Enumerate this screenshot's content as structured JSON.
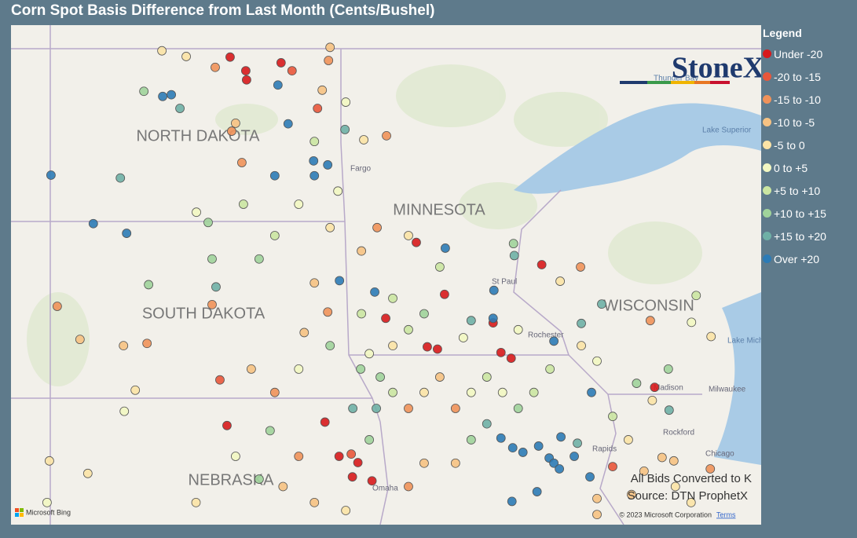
{
  "title": "Corn Spot Basis Difference from Last Month (Cents/Bushel)",
  "legend": {
    "title": "Legend",
    "items": [
      {
        "label": "Under -20",
        "color": "#d7191c"
      },
      {
        "label": "-20 to -15",
        "color": "#e9573b"
      },
      {
        "label": "-15 to -10",
        "color": "#f0925a"
      },
      {
        "label": "-10 to -5",
        "color": "#f6c283"
      },
      {
        "label": "-5 to 0",
        "color": "#fbe3a6"
      },
      {
        "label": "0 to +5",
        "color": "#f2f7c2"
      },
      {
        "label": "+5 to +10",
        "color": "#cbe6a2"
      },
      {
        "label": "+10 to +15",
        "color": "#a0d39b"
      },
      {
        "label": "+15 to +20",
        "color": "#6fb0a6"
      },
      {
        "label": "Over +20",
        "color": "#2c7bb6"
      }
    ]
  },
  "map": {
    "state_labels": [
      "NORTH DAKOTA",
      "MINNESOTA",
      "SOUTH DAKOTA",
      "WISCONSIN",
      "NEBRASKA"
    ],
    "place_labels": [
      "Fargo",
      "St Paul",
      "Rochester",
      "Madison",
      "Milwaukee",
      "Rockford",
      "Chicago",
      "Omaha",
      "Rapids",
      "Lake Superior",
      "Lake Michigan",
      "Thunder Bay"
    ],
    "notes": [
      "All Bids Converted to K",
      "Source: DTN ProphetX"
    ],
    "attribution": "© 2023 Microsoft Corporation",
    "terms": "Terms",
    "provider": "Microsoft Bing",
    "logo": "StoneX",
    "points": [
      [
        -99.8,
        48.83,
        0
      ],
      [
        -99.4,
        48.59,
        0
      ],
      [
        -99.38,
        48.43,
        0
      ],
      [
        -98.5,
        48.73,
        0
      ],
      [
        -100.18,
        48.65,
        2
      ],
      [
        -100.92,
        48.84,
        4
      ],
      [
        -101.54,
        48.94,
        4
      ],
      [
        -101.3,
        48.17,
        9
      ],
      [
        -101.52,
        48.14,
        9
      ],
      [
        -101.08,
        47.93,
        8
      ],
      [
        -98.32,
        47.66,
        9
      ],
      [
        -98.58,
        48.34,
        9
      ],
      [
        -98.22,
        48.59,
        1
      ],
      [
        -97.29,
        48.77,
        2
      ],
      [
        -97.45,
        48.25,
        3
      ],
      [
        -97.57,
        47.93,
        1
      ],
      [
        -96.87,
        47.56,
        8
      ],
      [
        -99.76,
        47.53,
        2
      ],
      [
        -99.66,
        47.67,
        3
      ],
      [
        -102.0,
        48.23,
        7
      ],
      [
        -104.37,
        46.76,
        9
      ],
      [
        -102.6,
        46.71,
        8
      ],
      [
        -98.66,
        46.75,
        9
      ],
      [
        -97.67,
        47.01,
        9
      ],
      [
        -97.31,
        46.94,
        9
      ],
      [
        -97.65,
        46.75,
        9
      ],
      [
        -103.29,
        45.91,
        9
      ],
      [
        -102.44,
        45.74,
        9
      ],
      [
        -99.5,
        46.98,
        2
      ],
      [
        -96.39,
        47.38,
        4
      ],
      [
        -95.81,
        47.45,
        2
      ],
      [
        -97.05,
        46.48,
        5
      ],
      [
        -100.36,
        45.93,
        7
      ],
      [
        -101.88,
        44.84,
        7
      ],
      [
        -100.16,
        44.8,
        8
      ],
      [
        -100.26,
        44.49,
        2
      ],
      [
        -104.21,
        44.46,
        2
      ],
      [
        -103.63,
        43.88,
        3
      ],
      [
        -102.52,
        43.77,
        3
      ],
      [
        -101.92,
        43.81,
        2
      ],
      [
        -100.06,
        43.17,
        1
      ],
      [
        -99.88,
        42.37,
        0
      ],
      [
        -102.22,
        42.99,
        4
      ],
      [
        -102.5,
        42.62,
        5
      ],
      [
        -103.43,
        41.53,
        4
      ],
      [
        -104.41,
        41.75,
        4
      ],
      [
        -99.06,
        41.43,
        7
      ],
      [
        -98.78,
        42.28,
        7
      ],
      [
        -97.38,
        42.43,
        0
      ],
      [
        -97.02,
        41.83,
        0
      ],
      [
        -96.54,
        41.72,
        0
      ],
      [
        -96.18,
        41.4,
        0
      ],
      [
        -96.68,
        41.47,
        0
      ],
      [
        -96.71,
        41.87,
        1
      ],
      [
        -95.05,
        45.58,
        0
      ],
      [
        -94.33,
        44.67,
        0
      ],
      [
        -95.83,
        44.25,
        0
      ],
      [
        -94.77,
        43.75,
        0
      ],
      [
        -94.51,
        43.71,
        0
      ],
      [
        -93.09,
        44.17,
        0
      ],
      [
        -92.89,
        43.65,
        0
      ],
      [
        -92.63,
        43.55,
        0
      ],
      [
        -91.85,
        45.19,
        0
      ],
      [
        -93.07,
        44.74,
        9
      ],
      [
        -93.09,
        44.25,
        9
      ],
      [
        -91.54,
        43.85,
        9
      ],
      [
        -90.58,
        42.95,
        9
      ],
      [
        -97.01,
        44.91,
        9
      ],
      [
        -96.11,
        44.71,
        9
      ],
      [
        -94.31,
        45.48,
        9
      ],
      [
        -93.65,
        44.21,
        8
      ],
      [
        -92.89,
        42.15,
        9
      ],
      [
        -92.59,
        41.98,
        9
      ],
      [
        -92.33,
        41.9,
        9
      ],
      [
        -91.93,
        42.01,
        9
      ],
      [
        -91.66,
        41.8,
        9
      ],
      [
        -91.36,
        42.17,
        9
      ],
      [
        -91.54,
        41.71,
        9
      ],
      [
        -91.02,
        41.83,
        9
      ],
      [
        -91.4,
        41.61,
        9
      ],
      [
        -90.62,
        41.47,
        9
      ],
      [
        -92.61,
        41.04,
        9
      ],
      [
        -91.97,
        41.21,
        9
      ],
      [
        -90.94,
        42.06,
        8
      ],
      [
        -90.32,
        44.5,
        8
      ],
      [
        -90.84,
        44.16,
        8
      ],
      [
        -92.57,
        45.56,
        7
      ],
      [
        -92.55,
        45.35,
        8
      ],
      [
        -90.86,
        45.15,
        2
      ],
      [
        -91.38,
        44.9,
        4
      ],
      [
        -87.91,
        44.65,
        6
      ],
      [
        -88.03,
        44.18,
        5
      ],
      [
        -87.53,
        43.93,
        4
      ],
      [
        -89.08,
        44.21,
        2
      ],
      [
        -88.62,
        43.36,
        7
      ],
      [
        -89.43,
        43.11,
        7
      ],
      [
        -88.97,
        43.04,
        0
      ],
      [
        -89.03,
        42.81,
        4
      ],
      [
        -88.6,
        42.64,
        8
      ],
      [
        -88.48,
        41.75,
        3
      ],
      [
        -87.55,
        41.61,
        2
      ],
      [
        -90.04,
        41.65,
        1
      ],
      [
        -88.78,
        41.81,
        3
      ],
      [
        -89.56,
        41.16,
        3
      ],
      [
        -90.44,
        41.09,
        3
      ],
      [
        -97.65,
        44.87,
        3
      ],
      [
        -97.31,
        44.36,
        2
      ],
      [
        -97.91,
        44.0,
        3
      ],
      [
        -97.25,
        43.77,
        7
      ],
      [
        -96.47,
        43.36,
        7
      ],
      [
        -95.97,
        43.22,
        7
      ],
      [
        -95.65,
        42.95,
        6
      ],
      [
        -95.25,
        42.67,
        2
      ],
      [
        -94.85,
        42.95,
        4
      ],
      [
        -94.45,
        43.22,
        3
      ],
      [
        -94.05,
        42.67,
        2
      ],
      [
        -93.65,
        42.95,
        5
      ],
      [
        -93.25,
        43.22,
        6
      ],
      [
        -92.85,
        42.95,
        5
      ],
      [
        -92.45,
        42.67,
        7
      ],
      [
        -92.05,
        42.95,
        6
      ],
      [
        -91.64,
        43.36,
        6
      ],
      [
        -93.25,
        42.4,
        8
      ],
      [
        -93.65,
        42.12,
        7
      ],
      [
        -94.05,
        41.71,
        3
      ],
      [
        -94.85,
        41.71,
        3
      ],
      [
        -95.25,
        41.3,
        2
      ],
      [
        -96.25,
        42.12,
        7
      ],
      [
        -96.67,
        42.67,
        8
      ],
      [
        -96.07,
        42.67,
        8
      ],
      [
        -96.25,
        43.63,
        5
      ],
      [
        -95.65,
        43.77,
        4
      ],
      [
        -95.25,
        44.05,
        6
      ],
      [
        -94.85,
        44.33,
        7
      ],
      [
        -95.65,
        44.6,
        6
      ],
      [
        -96.45,
        44.33,
        6
      ],
      [
        -95.25,
        45.7,
        4
      ],
      [
        -94.45,
        45.15,
        6
      ],
      [
        -93.85,
        43.91,
        5
      ],
      [
        -92.45,
        44.05,
        5
      ],
      [
        -90.84,
        43.77,
        4
      ],
      [
        -90.44,
        43.5,
        5
      ],
      [
        -90.04,
        42.53,
        6
      ],
      [
        -89.64,
        42.12,
        4
      ],
      [
        -89.24,
        41.57,
        3
      ],
      [
        -88.44,
        41.3,
        4
      ],
      [
        -88.04,
        41.02,
        4
      ],
      [
        -90.44,
        40.81,
        3
      ],
      [
        -96.85,
        40.88,
        4
      ],
      [
        -97.65,
        41.02,
        3
      ],
      [
        -98.45,
        41.3,
        3
      ],
      [
        -98.05,
        41.83,
        2
      ],
      [
        -104.47,
        41.02,
        5
      ],
      [
        -100.67,
        41.02,
        4
      ],
      [
        -99.66,
        41.83,
        5
      ],
      [
        -99.26,
        43.36,
        3
      ],
      [
        -98.66,
        42.95,
        2
      ],
      [
        -98.05,
        43.36,
        5
      ],
      [
        -99.06,
        45.29,
        7
      ],
      [
        -98.66,
        45.7,
        6
      ],
      [
        -98.05,
        46.25,
        5
      ],
      [
        -97.25,
        45.84,
        4
      ],
      [
        -96.45,
        45.43,
        3
      ],
      [
        -96.05,
        45.84,
        2
      ],
      [
        -97.65,
        47.35,
        6
      ],
      [
        -96.85,
        48.04,
        5
      ],
      [
        -97.25,
        49.0,
        3
      ],
      [
        -100.66,
        46.11,
        5
      ],
      [
        -100.26,
        45.29,
        7
      ],
      [
        -99.46,
        46.25,
        6
      ]
    ]
  }
}
